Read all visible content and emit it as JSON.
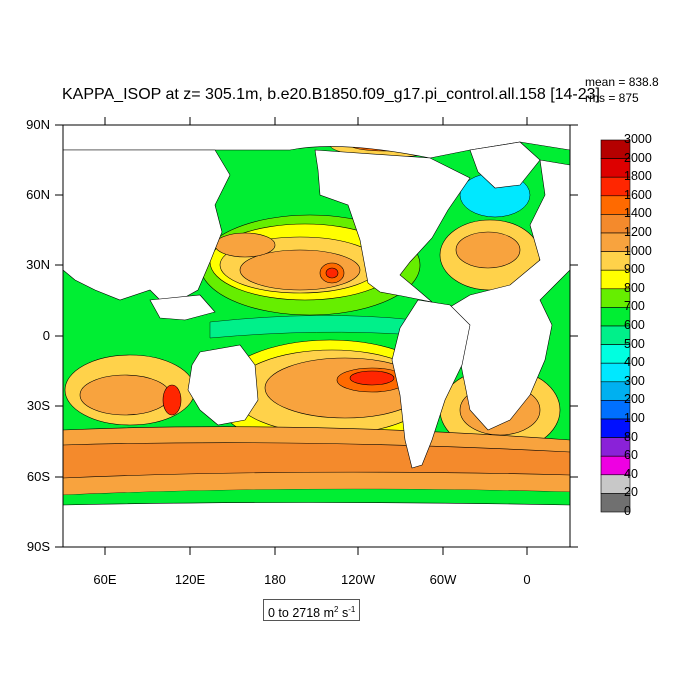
{
  "title": "KAPPA_ISOP at z= 305.1m, b.e20.B1850.f09_g17.pi_control.all.158 [14-23]",
  "stats": {
    "mean": "mean = 838.8",
    "rms": "rms = 875"
  },
  "lat_ticks": [
    "90N",
    "60N",
    "30N",
    "0",
    "30S",
    "60S",
    "90S"
  ],
  "lon_ticks": [
    "60E",
    "120E",
    "180",
    "120W",
    "60W",
    "0"
  ],
  "colorbar": {
    "levels": [
      "3000",
      "2000",
      "1800",
      "1600",
      "1400",
      "1200",
      "1000",
      "900",
      "800",
      "700",
      "600",
      "500",
      "400",
      "300",
      "200",
      "100",
      "80",
      "60",
      "40",
      "20",
      "0"
    ],
    "colors": [
      "#b50000",
      "#dd0000",
      "#ff2600",
      "#ff6a00",
      "#f48a2c",
      "#f8a33e",
      "#ffd24a",
      "#ffff00",
      "#66ee00",
      "#00ee33",
      "#00f08a",
      "#00ffe0",
      "#00e8ff",
      "#00b0f0",
      "#0070ff",
      "#0010ff",
      "#8a22d8",
      "#ee00e2",
      "#c8c8c8",
      "#707070"
    ]
  },
  "range_label": {
    "text": "0 to 2718 m",
    "sup2": "2",
    "s": " s",
    "sup1": "-1"
  },
  "colors": {
    "land": "#ffffff",
    "frame": "#000000"
  }
}
